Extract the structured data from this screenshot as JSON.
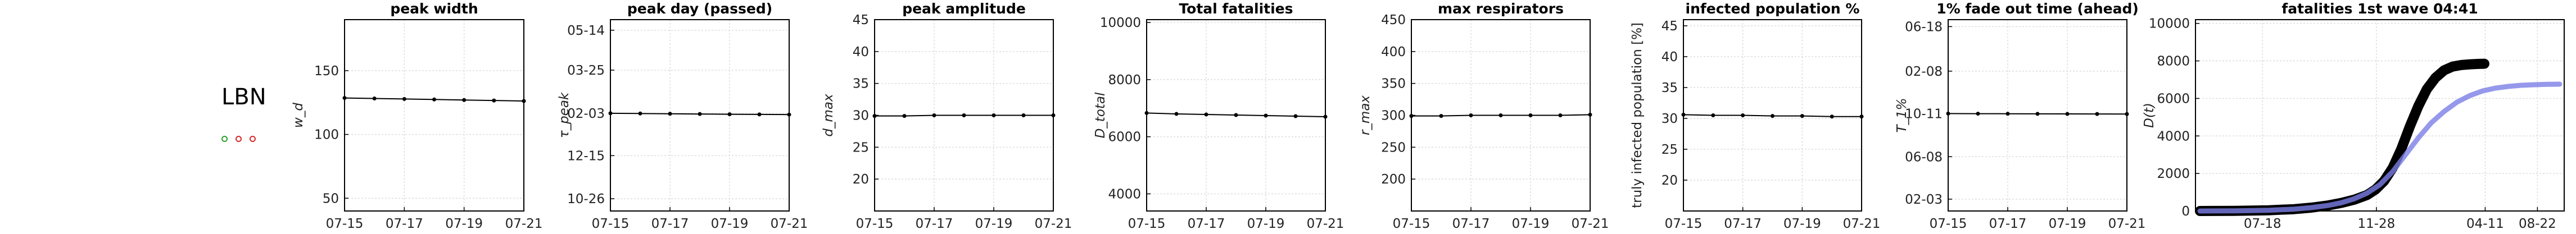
{
  "country": {
    "code": "LBN",
    "dots": [
      {
        "color": "#2ca02c"
      },
      {
        "color": "#d62728"
      },
      {
        "color": "#d62728"
      }
    ]
  },
  "chart_data": [
    {
      "type": "line",
      "title": "peak width",
      "ylabel": "w_d",
      "x": [
        "07-15",
        "07-16",
        "07-17",
        "07-18",
        "07-19",
        "07-20",
        "07-21"
      ],
      "values": [
        128.6,
        128.2,
        127.8,
        127.4,
        127.0,
        126.6,
        126.2
      ],
      "ylim": [
        40,
        190
      ],
      "yticks": [
        {
          "v": 50,
          "label": "50"
        },
        {
          "v": 100,
          "label": "100"
        },
        {
          "v": 150,
          "label": "150"
        }
      ],
      "xticks": [
        "07-15",
        "07-17",
        "07-19",
        "07-21"
      ]
    },
    {
      "type": "line",
      "title": "peak day (passed)",
      "ylabel": "τ_peak",
      "x": [
        "07-15",
        "07-16",
        "07-17",
        "07-18",
        "07-19",
        "07-20",
        "07-21"
      ],
      "values": [
        0.0,
        -0.3,
        -0.6,
        -0.9,
        -1.2,
        -1.4,
        -1.6
      ],
      "ylim": [
        -120,
        115
      ],
      "yticks": [
        {
          "v": -105,
          "label": "10-26"
        },
        {
          "v": -52,
          "label": "12-15"
        },
        {
          "v": 0,
          "label": "02-03"
        },
        {
          "v": 53,
          "label": "03-25"
        },
        {
          "v": 102,
          "label": "05-14"
        }
      ],
      "xticks": [
        "07-15",
        "07-17",
        "07-19",
        "07-21"
      ]
    },
    {
      "type": "line",
      "title": "peak amplitude",
      "ylabel": "d_max",
      "x": [
        "07-15",
        "07-16",
        "07-17",
        "07-18",
        "07-19",
        "07-20",
        "07-21"
      ],
      "values": [
        29.9,
        29.9,
        30.0,
        30.0,
        30.0,
        30.0,
        30.0
      ],
      "ylim": [
        15,
        45
      ],
      "yticks": [
        {
          "v": 20,
          "label": "20"
        },
        {
          "v": 25,
          "label": "25"
        },
        {
          "v": 30,
          "label": "30"
        },
        {
          "v": 35,
          "label": "35"
        },
        {
          "v": 40,
          "label": "40"
        },
        {
          "v": 45,
          "label": "45"
        }
      ],
      "xticks": [
        "07-15",
        "07-17",
        "07-19",
        "07-21"
      ]
    },
    {
      "type": "line",
      "title": "Total fatalities",
      "ylabel": "D_total",
      "x": [
        "07-15",
        "07-16",
        "07-17",
        "07-18",
        "07-19",
        "07-20",
        "07-21"
      ],
      "values": [
        6830,
        6800,
        6780,
        6760,
        6740,
        6720,
        6700
      ],
      "ylim": [
        3400,
        10100
      ],
      "yticks": [
        {
          "v": 4000,
          "label": "4000"
        },
        {
          "v": 6000,
          "label": "6000"
        },
        {
          "v": 8000,
          "label": "8000"
        },
        {
          "v": 10000,
          "label": "10000"
        }
      ],
      "xticks": [
        "07-15",
        "07-17",
        "07-19",
        "07-21"
      ]
    },
    {
      "type": "line",
      "title": "max respirators",
      "ylabel": "r_max",
      "x": [
        "07-15",
        "07-16",
        "07-17",
        "07-18",
        "07-19",
        "07-20",
        "07-21"
      ],
      "values": [
        299,
        299,
        300,
        300,
        300,
        300,
        301
      ],
      "ylim": [
        150,
        450
      ],
      "yticks": [
        {
          "v": 200,
          "label": "200"
        },
        {
          "v": 250,
          "label": "250"
        },
        {
          "v": 300,
          "label": "300"
        },
        {
          "v": 350,
          "label": "350"
        },
        {
          "v": 400,
          "label": "400"
        },
        {
          "v": 450,
          "label": "450"
        }
      ],
      "xticks": [
        "07-15",
        "07-17",
        "07-19",
        "07-21"
      ]
    },
    {
      "type": "line",
      "title": "infected population %",
      "ylabel": "truly infected population [%]",
      "x": [
        "07-15",
        "07-16",
        "07-17",
        "07-18",
        "07-19",
        "07-20",
        "07-21"
      ],
      "values": [
        30.6,
        30.5,
        30.5,
        30.4,
        30.4,
        30.3,
        30.3
      ],
      "ylim": [
        15,
        46
      ],
      "yticks": [
        {
          "v": 20,
          "label": "20"
        },
        {
          "v": 25,
          "label": "25"
        },
        {
          "v": 30,
          "label": "30"
        },
        {
          "v": 35,
          "label": "35"
        },
        {
          "v": 40,
          "label": "40"
        },
        {
          "v": 45,
          "label": "45"
        }
      ],
      "xticks": [
        "07-15",
        "07-17",
        "07-19",
        "07-21"
      ]
    },
    {
      "type": "line",
      "title": "1% fade out time (ahead)",
      "ylabel": "T_1%",
      "x": [
        "07-15",
        "07-16",
        "07-17",
        "07-18",
        "07-19",
        "07-20",
        "07-21"
      ],
      "values": [
        0.0,
        -0.3,
        -0.5,
        -0.8,
        -1.0,
        -1.2,
        -1.4
      ],
      "ylim": [
        -280,
        270
      ],
      "yticks": [
        {
          "v": -246,
          "label": "02-03"
        },
        {
          "v": -124,
          "label": "06-08"
        },
        {
          "v": 0,
          "label": "10-11"
        },
        {
          "v": 122,
          "label": "02-08"
        },
        {
          "v": 250,
          "label": "06-18"
        }
      ],
      "xticks": [
        "07-15",
        "07-17",
        "07-19",
        "07-21"
      ]
    },
    {
      "type": "line",
      "title": "fatalities 1st wave 04:41",
      "ylabel": "D(t)",
      "xlim": [
        0,
        420
      ],
      "ylim": [
        0,
        10200
      ],
      "yticks": [
        {
          "v": 0,
          "label": "0"
        },
        {
          "v": 2000,
          "label": "2000"
        },
        {
          "v": 4000,
          "label": "4000"
        },
        {
          "v": 6000,
          "label": "6000"
        },
        {
          "v": 8000,
          "label": "8000"
        },
        {
          "v": 10000,
          "label": "10000"
        }
      ],
      "xticks": [
        {
          "v": 73,
          "label": "07-18"
        },
        {
          "v": 206,
          "label": "11-28"
        },
        {
          "v": 333,
          "label": "04-11"
        },
        {
          "v": 394,
          "label": "08-22"
        }
      ],
      "series": [
        {
          "color": "#000000",
          "x": [
            0,
            40,
            80,
            110,
            130,
            150,
            165,
            180,
            195,
            205,
            215,
            225,
            235,
            245,
            255,
            265,
            275,
            285,
            295,
            305,
            315,
            325,
            332
          ],
          "values": [
            0,
            10,
            40,
            100,
            180,
            300,
            430,
            600,
            850,
            1150,
            1600,
            2300,
            3300,
            4500,
            5600,
            6500,
            7100,
            7500,
            7700,
            7780,
            7820,
            7840,
            7850
          ]
        },
        {
          "color": "#7b7ee6",
          "x": [
            0,
            40,
            80,
            110,
            130,
            150,
            165,
            180,
            195,
            210,
            225,
            240,
            255,
            270,
            285,
            300,
            315,
            330,
            345,
            360,
            375,
            390,
            405,
            420
          ],
          "values": [
            0,
            10,
            40,
            100,
            180,
            300,
            440,
            650,
            950,
            1400,
            2100,
            3000,
            3900,
            4700,
            5300,
            5800,
            6150,
            6400,
            6550,
            6640,
            6700,
            6730,
            6750,
            6760
          ]
        }
      ]
    }
  ]
}
